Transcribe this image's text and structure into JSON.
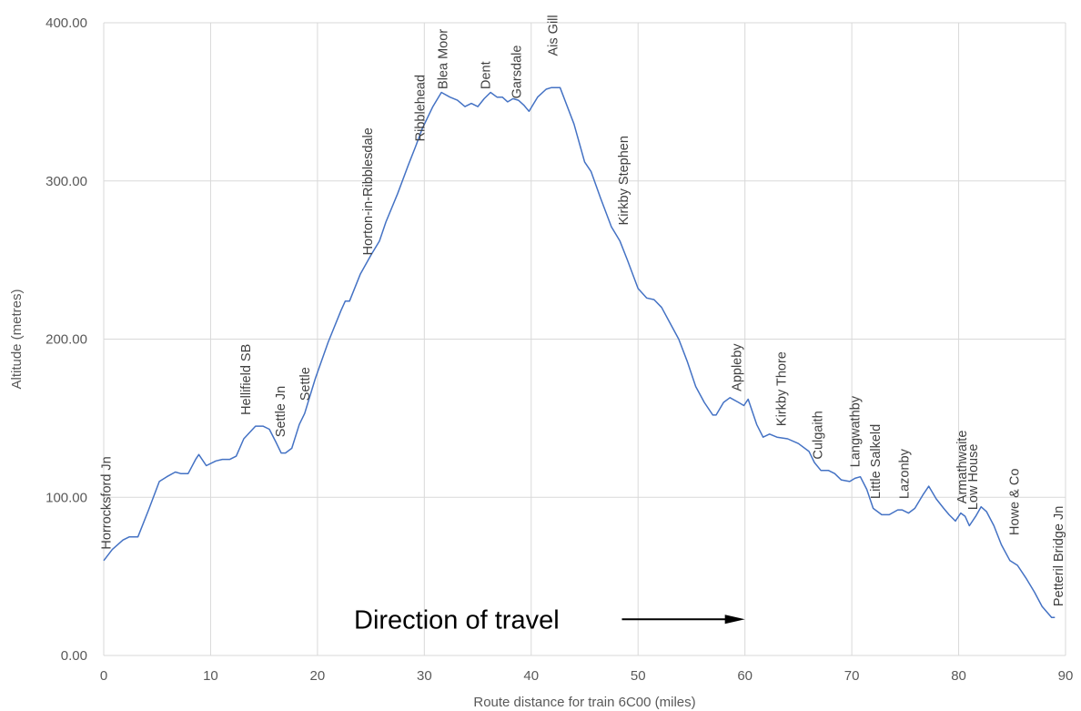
{
  "chart_data": {
    "type": "line",
    "title": "",
    "xlabel": "Route distance for train 6C00 (miles)",
    "ylabel": "Altitude (metres)",
    "xlim": [
      0,
      90
    ],
    "ylim": [
      0,
      400
    ],
    "xticks": [
      0,
      10,
      20,
      30,
      40,
      50,
      60,
      70,
      80,
      90
    ],
    "xtick_labels": [
      "0",
      "10",
      "20",
      "30",
      "40",
      "50",
      "60",
      "70",
      "80",
      "90"
    ],
    "yticks": [
      0,
      100,
      200,
      300,
      400
    ],
    "ytick_labels": [
      "0.00",
      "100.00",
      "200.00",
      "300.00",
      "400.00"
    ],
    "grid": true,
    "legend": "none",
    "line_color": "#4472c4",
    "series": [
      {
        "x": [
          0,
          0.8,
          1.8,
          2.4,
          3.2,
          4.2,
          5.2,
          5.9,
          6.7,
          7.2,
          7.9,
          8.6,
          8.9,
          9.6,
          10.5,
          11.1,
          11.8,
          12.4,
          13.1,
          14.2,
          14.9,
          15.5,
          16.1,
          16.6,
          17.0,
          17.6,
          18.3,
          18.8,
          19.8,
          21.0,
          22.2,
          22.6,
          23.0,
          24.0,
          25.0,
          25.8,
          26.4,
          27.5,
          28.5,
          29.2,
          29.8,
          30.8,
          31.6,
          32.4,
          33.1,
          33.8,
          34.4,
          35.0,
          35.6,
          36.2,
          36.8,
          37.3,
          37.8,
          38.3,
          38.8,
          39.3,
          39.8,
          40.6,
          41.4,
          41.9,
          42.7,
          44.0,
          45.0,
          45.6,
          46.5,
          47.5,
          48.3,
          49.0,
          50.0,
          50.8,
          51.5,
          52.2,
          53.0,
          53.8,
          54.6,
          55.4,
          56.2,
          57.0,
          57.3,
          58.0,
          58.6,
          59.4,
          59.9,
          60.3,
          61.1,
          61.7,
          62.3,
          63.0,
          64.0,
          65.0,
          66.0,
          66.5,
          67.1,
          67.8,
          68.4,
          69.0,
          69.8,
          70.3,
          70.8,
          71.4,
          72.0,
          72.8,
          73.5,
          74.3,
          74.7,
          75.3,
          75.9,
          76.7,
          77.2,
          77.9,
          78.6,
          79.1,
          79.7,
          80.2,
          80.6,
          81.0,
          81.6,
          82.1,
          82.6,
          83.3,
          84.0,
          84.8,
          85.5,
          86.3,
          87.1,
          87.8,
          88.7,
          89.0
        ],
        "y": [
          60,
          67,
          73,
          75,
          75,
          92,
          110,
          113,
          116,
          115,
          115,
          124,
          127,
          120,
          123,
          124,
          124,
          126,
          137,
          145,
          145,
          143,
          135,
          128,
          128,
          131,
          146,
          153,
          175,
          198,
          218,
          224,
          224,
          241,
          253,
          262,
          274,
          292,
          310,
          322,
          333,
          347,
          356,
          353,
          351,
          347,
          349,
          347,
          352,
          356,
          353,
          353,
          350,
          352,
          351,
          348,
          344,
          353,
          358,
          359,
          359,
          336,
          312,
          306,
          289,
          271,
          262,
          250,
          232,
          226,
          225,
          220,
          210,
          200,
          186,
          170,
          160,
          152,
          152,
          160,
          163,
          160,
          158,
          162,
          146,
          138,
          140,
          138,
          137,
          134,
          129,
          122,
          117,
          117,
          115,
          111,
          110,
          112,
          113,
          105,
          93,
          89,
          89,
          92,
          92,
          90,
          93,
          102,
          107,
          99,
          93,
          89,
          85,
          90,
          88,
          82,
          88,
          94,
          91,
          82,
          70,
          60,
          57,
          49,
          40,
          31,
          24,
          24
        ]
      }
    ],
    "annotations": [
      {
        "text": "Horrocksford Jn",
        "x": 0.2,
        "y": 67
      },
      {
        "text": "Hellifield SB",
        "x": 13.3,
        "y": 152
      },
      {
        "text": "Settle Jn",
        "x": 16.5,
        "y": 138
      },
      {
        "text": "Settle",
        "x": 18.8,
        "y": 161
      },
      {
        "text": "Horton-in-Ribblesdale",
        "x": 24.7,
        "y": 253
      },
      {
        "text": "Ribblehead",
        "x": 29.6,
        "y": 325
      },
      {
        "text": "Blea Moor",
        "x": 31.7,
        "y": 358
      },
      {
        "text": "Dent",
        "x": 35.7,
        "y": 358
      },
      {
        "text": "Garsdale",
        "x": 38.6,
        "y": 352
      },
      {
        "text": "Ais Gill",
        "x": 42.0,
        "y": 379
      },
      {
        "text": "Kirkby Stephen",
        "x": 48.6,
        "y": 272
      },
      {
        "text": "Appleby",
        "x": 59.2,
        "y": 167
      },
      {
        "text": "Kirkby Thore",
        "x": 63.4,
        "y": 145
      },
      {
        "text": "Culgaith",
        "x": 66.8,
        "y": 124
      },
      {
        "text": "Langwathby",
        "x": 70.3,
        "y": 119
      },
      {
        "text": "Little Salkeld",
        "x": 72.2,
        "y": 99
      },
      {
        "text": "Lazonby",
        "x": 74.9,
        "y": 99
      },
      {
        "text": "Armathwaite",
        "x": 80.3,
        "y": 96
      },
      {
        "text": "Low House",
        "x": 81.3,
        "y": 92
      },
      {
        "text": "Howe & Co",
        "x": 85.2,
        "y": 76
      },
      {
        "text": "Petteril Bridge Jn",
        "x": 89.3,
        "y": 31
      }
    ],
    "arrow_annotation": {
      "text": "Direction of travel",
      "x_start": 49.0,
      "x_end": 60.0,
      "y": 24
    }
  }
}
